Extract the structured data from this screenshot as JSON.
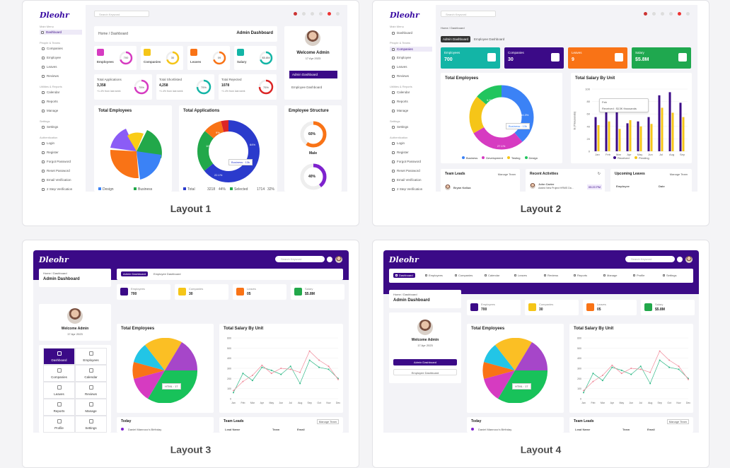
{
  "captions": [
    "Layout 1",
    "Layout 2",
    "Layout 3",
    "Layout 4"
  ],
  "brand": "Dleohr",
  "search_placeholder": "Search Keyword",
  "sidebar": {
    "main_menu": "Main Menu",
    "dashboard": "Dashboard",
    "people_teams": "People & Teams",
    "companies": "Companies",
    "employee": "Employee",
    "leaves": "Leaves",
    "reviews": "Reviews",
    "utilities": "Utilities & Reports",
    "calendar": "Calendar",
    "reports": "Reports",
    "manage": "Manage",
    "settings_h": "Settings",
    "settings": "Settings",
    "auth": "Authentication",
    "login": "Login",
    "register": "Register",
    "forgot": "Forgot Password",
    "reset": "Reset Password",
    "email": "Email Verification",
    "twostep": "2 Step Verification"
  },
  "l1": {
    "breadcrumb": "Home / Dashboard",
    "title": "Admin Dashboard",
    "stats": [
      {
        "label": "Employees",
        "value": "700"
      },
      {
        "label": "Companies",
        "value": "30"
      },
      {
        "label": "Leaves",
        "value": "09"
      },
      {
        "label": "Salary",
        "value": "$5.8M"
      }
    ],
    "apps": [
      {
        "label": "Total Applications",
        "value": "3,358",
        "note": "+1.4% from last week",
        "pct": "75%"
      },
      {
        "label": "Total Shortlisted",
        "value": "4,258",
        "note": "+1.4% from last week",
        "pct": "75%"
      },
      {
        "label": "Total Rejected",
        "value": "1078",
        "note": "+1.4% from last week",
        "pct": "75%"
      }
    ],
    "welcome": "Welcome Admin",
    "date": "17 Apr 2023",
    "admin_dash": "Admin Dashboard",
    "emp_dash": "Employee Dashboard",
    "total_employees": "Total Employees",
    "total_applications": "Total Applications",
    "employee_structure": "Employee Structure",
    "business_tip": "Business : 13k",
    "pct_a": "64%",
    "pct_b": "22.1%",
    "pct_c": "10%",
    "pct_d": "9%",
    "male_pct": "60%",
    "male": "Male",
    "female_pct": "40%",
    "legend_design": "Design",
    "legend_business": "Business",
    "legend_total": "Total",
    "legend_total_v": "3218",
    "legend_total_p": "44%",
    "legend_selected": "Selected",
    "legend_selected_v": "1714",
    "legend_selected_p": "32%"
  },
  "l2": {
    "breadcrumb": "Home / Dashboard",
    "tab_admin": "Admin Dashboard",
    "tab_emp": "Employee Dashboard",
    "stats": [
      {
        "label": "Employees",
        "value": "700",
        "color": "#13b5a6"
      },
      {
        "label": "Companies",
        "value": "30",
        "color": "#3b0a87"
      },
      {
        "label": "Leaves",
        "value": "9",
        "color": "#f97316"
      },
      {
        "label": "Salary",
        "value": "$5.8M",
        "color": "#1fa84f"
      }
    ],
    "total_employees": "Total Employees",
    "salary_title": "Total Salary By Unit",
    "ylabel": "$ (Thousands)",
    "donut_tip": "Business : 13k",
    "donut_p1": "34.3%",
    "donut_p2": "27.1%",
    "donut_p3": "9.5%",
    "legend": [
      "Business",
      "Development",
      "Testing",
      "Design"
    ],
    "tooltip_month": "Feb",
    "tooltip_text": "Received : $13K thousands",
    "yticks": [
      "100",
      "80",
      "60",
      "40",
      "20",
      "0"
    ],
    "months": [
      "Jan",
      "Feb",
      "Mar",
      "Apr",
      "May",
      "Jun",
      "Jul",
      "Aug",
      "Sep"
    ],
    "received": "Received",
    "pending": "Pending",
    "team_leads": "Team Leads",
    "manage_team": "Manage Team",
    "lead_name": "Bryan Kallua",
    "recent": "Recent Activities",
    "act_name": "John Carter",
    "act_text": "Added New Project HRMS Da...",
    "act_time": "05:20 PM",
    "upcoming": "Upcoming Leaves",
    "col_employee": "Employee",
    "col_date": "Date"
  },
  "l3": {
    "breadcrumb": "Home / Dashboard",
    "title": "Admin Dashboard",
    "tab_admin": "Admin Dashboard",
    "tab_emp": "Employee Dashboard",
    "stats": [
      {
        "label": "Employees",
        "value": "700"
      },
      {
        "label": "Companies",
        "value": "30"
      },
      {
        "label": "Leaves",
        "value": "05"
      },
      {
        "label": "Salary",
        "value": "$5.8M"
      }
    ],
    "welcome": "Welcome Admin",
    "date": "17 Apr 2023",
    "tiles": [
      "Dashboard",
      "Employees",
      "Companies",
      "Calendar",
      "Leaves",
      "Reviews",
      "Reports",
      "Manage",
      "Profile",
      "Settings"
    ],
    "total_employees": "Total Employees",
    "salary_title": "Total Salary By Unit",
    "pie_tip": "HTML : 17",
    "yticks": [
      "600",
      "500",
      "400",
      "300",
      "200",
      "100",
      "0"
    ],
    "months": [
      "Jan",
      "Feb",
      "Mar",
      "Apr",
      "May",
      "Jun",
      "Jul",
      "Aug",
      "Sep",
      "Oct",
      "Nov",
      "Dec"
    ],
    "today": "Today",
    "birthday": "Daniel Mannocc's Birthday",
    "team_leads": "Team Leads",
    "manage_team": "Manage Team",
    "cols": [
      "Lead Name",
      "Team",
      "Email"
    ]
  },
  "l4": {
    "nav": [
      "Dashboard",
      "Employees",
      "Companies",
      "Calendar",
      "Leaves",
      "Reviews",
      "Reports",
      "Manage",
      "Profile",
      "Settings"
    ],
    "breadcrumb": "Home / Dashboard",
    "title": "Admin Dashboard",
    "stats": [
      {
        "label": "Employees",
        "value": "700"
      },
      {
        "label": "Companies",
        "value": "30"
      },
      {
        "label": "Leaves",
        "value": "05"
      },
      {
        "label": "Salary",
        "value": "$5.8M"
      }
    ],
    "welcome": "Welcome Admin",
    "date": "17 Apr 2023",
    "admin_dash": "Admin Dashboard",
    "emp_dash": "Employee Dashboard",
    "total_employees": "Total Employees",
    "salary_title": "Total Salary By Unit",
    "pie_tip": "HTML : 17",
    "yticks": [
      "600",
      "500",
      "400",
      "300",
      "200",
      "100",
      "0"
    ],
    "months": [
      "Jan",
      "Feb",
      "Mar",
      "Apr",
      "May",
      "Jun",
      "Jul",
      "Aug",
      "Sep",
      "Oct",
      "Nov",
      "Dec"
    ],
    "today": "Today",
    "birthday": "Daniel Mannocc's Birthday",
    "team_leads": "Team Leads",
    "manage_team": "Manage Team",
    "cols": [
      "Lead Name",
      "Team",
      "Email"
    ]
  }
}
